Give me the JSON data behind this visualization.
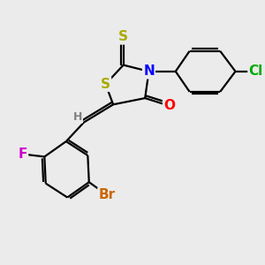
{
  "bg_color": "#ebebeb",
  "atom_colors": {
    "S": "#aaaa00",
    "N": "#0000ff",
    "O": "#ff0000",
    "F": "#cc00cc",
    "Br": "#cc6600",
    "Cl": "#00aa00",
    "C": "#000000",
    "H": "#808080"
  },
  "bond_color": "#000000",
  "bond_width": 1.6,
  "font_size_atoms": 11,
  "font_size_small": 9
}
